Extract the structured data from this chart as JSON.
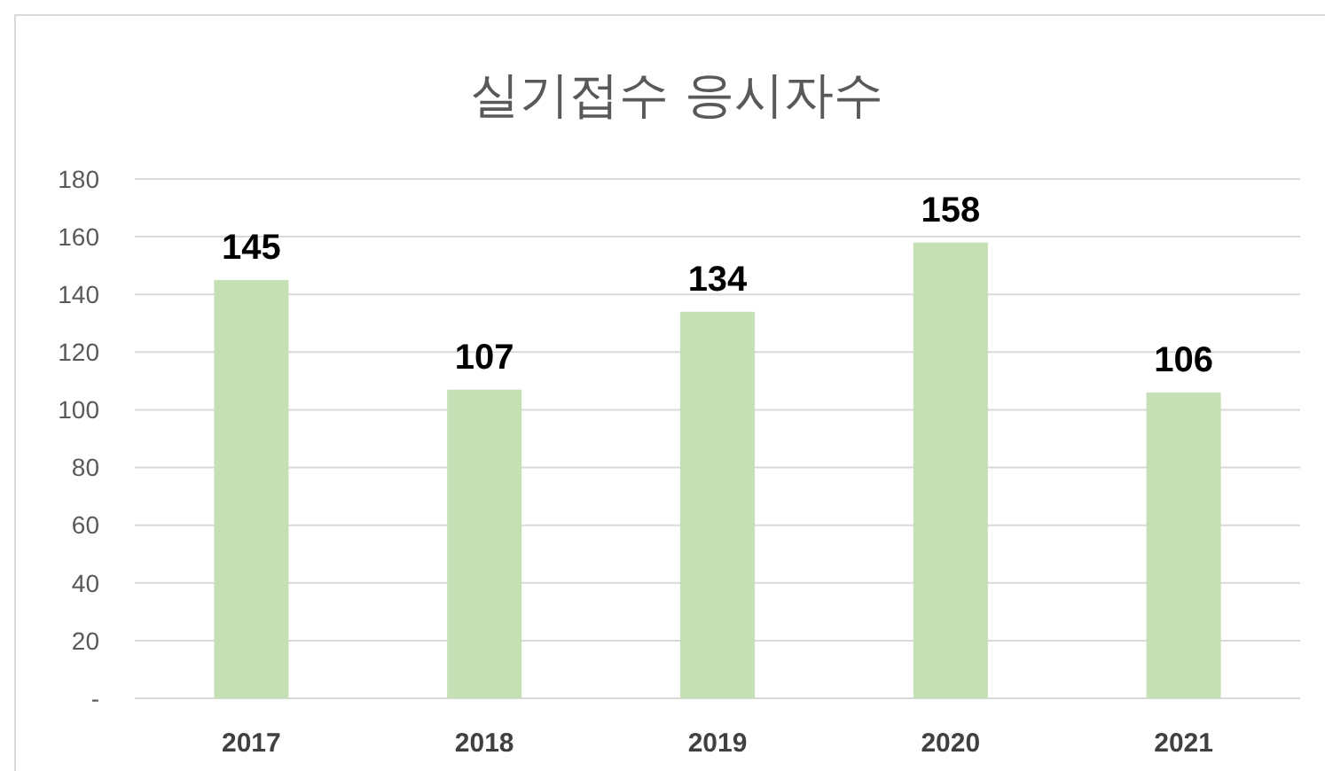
{
  "chart_data": {
    "type": "bar",
    "title": "실기접수 응시자수",
    "categories": [
      "2017",
      "2018",
      "2019",
      "2020",
      "2021"
    ],
    "values": [
      145,
      107,
      134,
      158,
      106
    ],
    "color": "#c5e0b4",
    "ylim": [
      0,
      180
    ],
    "yticks": [
      {
        "value": 0,
        "label": "-"
      },
      20,
      40,
      60,
      80,
      100,
      120,
      140,
      160,
      180
    ],
    "grid": "y",
    "data_labels": true
  }
}
